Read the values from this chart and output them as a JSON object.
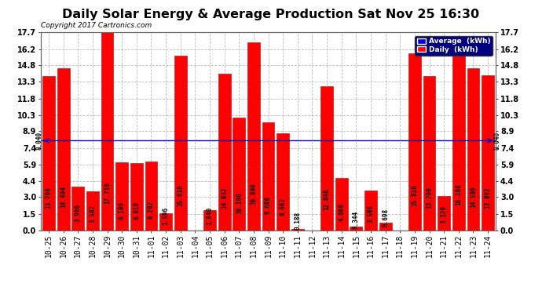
{
  "title": "Daily Solar Energy & Average Production Sat Nov 25 16:30",
  "copyright": "Copyright 2017 Cartronics.com",
  "categories": [
    "10-25",
    "10-26",
    "10-27",
    "10-28",
    "10-29",
    "10-30",
    "10-31",
    "11-01",
    "11-02",
    "11-03",
    "11-04",
    "11-05",
    "11-06",
    "11-07",
    "11-08",
    "11-09",
    "11-10",
    "11-11",
    "11-12",
    "11-13",
    "11-14",
    "11-15",
    "11-16",
    "11-17",
    "11-18",
    "11-19",
    "11-20",
    "11-21",
    "11-22",
    "11-23",
    "11-24"
  ],
  "values": [
    13.79,
    14.494,
    3.966,
    3.502,
    17.71,
    6.106,
    6.01,
    6.202,
    1.596,
    15.616,
    0.0,
    1.84,
    14.032,
    10.108,
    16.808,
    9.696,
    8.692,
    0.188,
    0.0,
    12.896,
    4.696,
    0.344,
    3.598,
    0.698,
    0.0,
    15.816,
    13.79,
    3.128,
    16.108,
    14.506,
    13.892
  ],
  "average": 8.04,
  "bar_color": "#ff0000",
  "average_color": "#0000cc",
  "bg_color": "#ffffff",
  "grid_color": "#bbbbbb",
  "ylim": [
    0.0,
    17.7
  ],
  "yticks": [
    0.0,
    1.5,
    3.0,
    4.4,
    5.9,
    7.4,
    8.9,
    10.3,
    11.8,
    13.3,
    14.8,
    16.2,
    17.7
  ],
  "legend_avg_label": "Average  (kWh)",
  "legend_daily_label": "Daily  (kWh)",
  "avg_label": "8.040",
  "title_fontsize": 11.5,
  "tick_fontsize": 7,
  "value_fontsize": 5.5,
  "bar_edge_color": "#bb0000",
  "label_color": "#000000",
  "legend_bg": "#000080",
  "legend_text": "#ffffff"
}
